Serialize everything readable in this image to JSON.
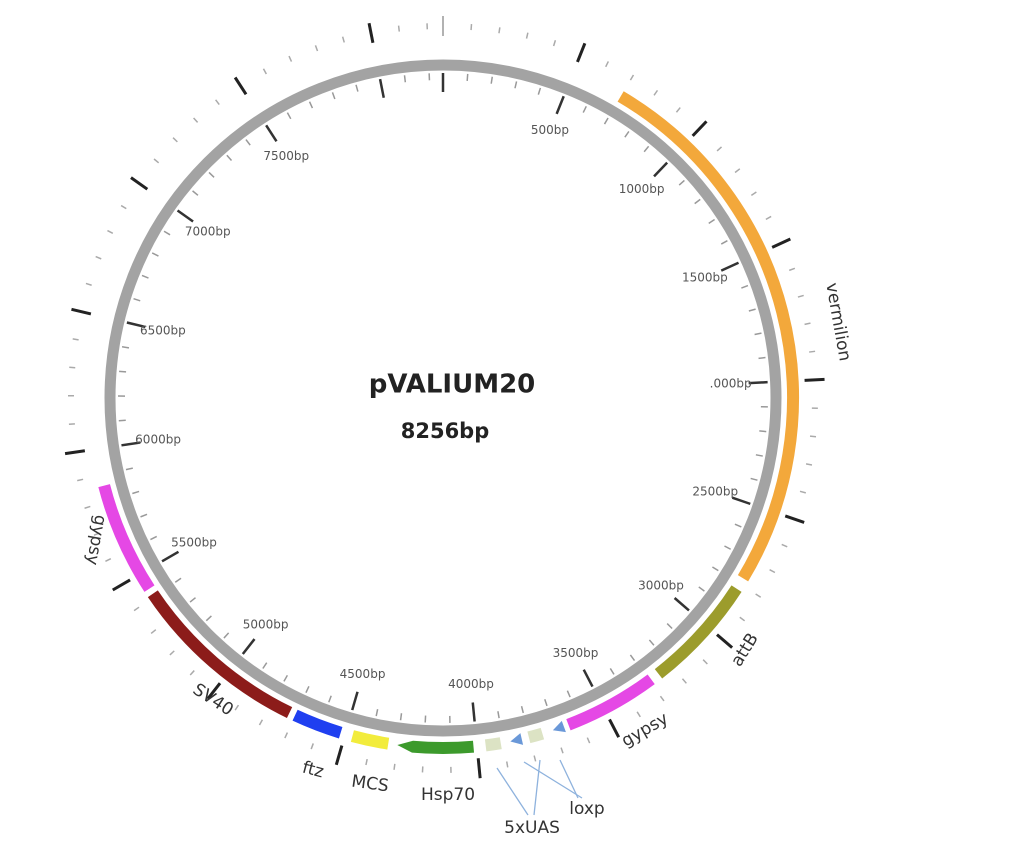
{
  "map": {
    "title": "pVALIUM20",
    "length": "8256bp",
    "position_labels": [
      "500bp",
      "1000bp",
      "1500bp",
      ".000bp",
      "2500bp",
      "3000bp",
      "3500bp",
      "4000bp",
      "4500bp",
      "5000bp",
      "5500bp",
      "6000bp",
      "6500bp",
      "7000bp",
      "7500bp"
    ],
    "features": [
      {
        "label": "vermilion"
      },
      {
        "label": "attB"
      },
      {
        "label": "gypsy"
      },
      {
        "label": "loxp"
      },
      {
        "label": "5xUAS"
      },
      {
        "label": "Hsp70"
      },
      {
        "label": "MCS"
      },
      {
        "label": "ftz"
      },
      {
        "label": "SV40"
      },
      {
        "label": "gypsy"
      }
    ]
  }
}
